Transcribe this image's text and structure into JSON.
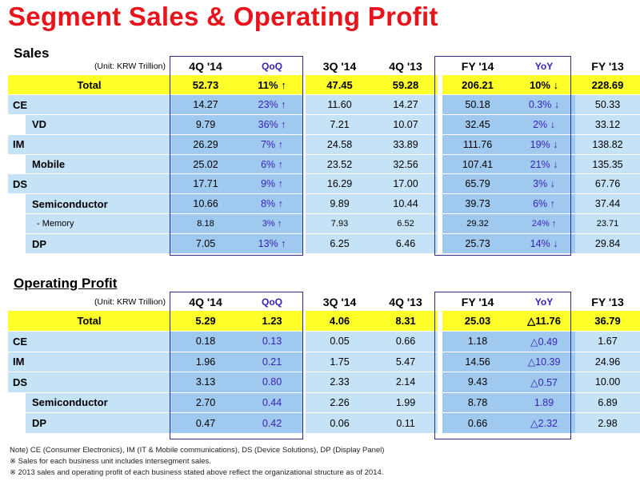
{
  "title": "Segment Sales & Operating Profit",
  "note_lines": [
    "Note) CE (Consumer Electronics), IM (IT & Mobile communications),  DS (Device Solutions), DP (Display Panel)",
    "※ Sales for each business unit includes intersegment sales.",
    "※ 2013 sales and operating profit of each business stated above reflect the organizational structure as of 2014."
  ],
  "sales": {
    "heading": "Sales",
    "unit": "(Unit: KRW Trillion)",
    "columns": [
      "4Q '14",
      "QoQ",
      "3Q '14",
      "4Q '13",
      "FY '14",
      "YoY",
      "FY '13"
    ],
    "rows": [
      {
        "label": "Total",
        "level": 0,
        "values": [
          "52.73",
          "11% ↑",
          "47.45",
          "59.28",
          "206.21",
          "10% ↓",
          "228.69"
        ]
      },
      {
        "label": "CE",
        "level": 0,
        "values": [
          "14.27",
          "23% ↑",
          "11.60",
          "14.27",
          "50.18",
          "0.3% ↓",
          "50.33"
        ]
      },
      {
        "label": "VD",
        "level": 1,
        "values": [
          "9.79",
          "36% ↑",
          "7.21",
          "10.07",
          "32.45",
          "2% ↓",
          "33.12"
        ]
      },
      {
        "label": "IM",
        "level": 0,
        "values": [
          "26.29",
          "7% ↑",
          "24.58",
          "33.89",
          "111.76",
          "19% ↓",
          "138.82"
        ]
      },
      {
        "label": "Mobile",
        "level": 1,
        "values": [
          "25.02",
          "6% ↑",
          "23.52",
          "32.56",
          "107.41",
          "21% ↓",
          "135.35"
        ]
      },
      {
        "label": "DS",
        "level": 0,
        "values": [
          "17.71",
          "9% ↑",
          "16.29",
          "17.00",
          "65.79",
          "3% ↓",
          "67.76"
        ]
      },
      {
        "label": "Semiconductor",
        "level": 1,
        "values": [
          "10.66",
          "8% ↑",
          "9.89",
          "10.44",
          "39.73",
          "6% ↑",
          "37.44"
        ]
      },
      {
        "label": "- Memory",
        "level": 2,
        "values": [
          "8.18",
          "3% ↑",
          "7.93",
          "6.52",
          "29.32",
          "24% ↑",
          "23.71"
        ]
      },
      {
        "label": "DP",
        "level": 1,
        "values": [
          "7.05",
          "13% ↑",
          "6.25",
          "6.46",
          "25.73",
          "14% ↓",
          "29.84"
        ]
      }
    ]
  },
  "operating_profit": {
    "heading": "Operating Profit",
    "unit": "(Unit: KRW Trillion)",
    "columns": [
      "4Q '14",
      "QoQ",
      "3Q '14",
      "4Q '13",
      "FY '14",
      "YoY",
      "FY '13"
    ],
    "rows": [
      {
        "label": "Total",
        "level": 0,
        "values": [
          "5.29",
          "1.23",
          "4.06",
          "8.31",
          "25.03",
          "△11.76",
          "36.79"
        ]
      },
      {
        "label": "CE",
        "level": 0,
        "values": [
          "0.18",
          "0.13",
          "0.05",
          "0.66",
          "1.18",
          "△0.49",
          "1.67"
        ]
      },
      {
        "label": "IM",
        "level": 0,
        "values": [
          "1.96",
          "0.21",
          "1.75",
          "5.47",
          "14.56",
          "△10.39",
          "24.96"
        ]
      },
      {
        "label": "DS",
        "level": 0,
        "values": [
          "3.13",
          "0.80",
          "2.33",
          "2.14",
          "9.43",
          "△0.57",
          "10.00"
        ]
      },
      {
        "label": "Semiconductor",
        "level": 1,
        "values": [
          "2.70",
          "0.44",
          "2.26",
          "1.99",
          "8.78",
          "1.89",
          "6.89"
        ]
      },
      {
        "label": "DP",
        "level": 1,
        "values": [
          "0.47",
          "0.42",
          "0.06",
          "0.11",
          "0.66",
          "△2.32",
          "2.98"
        ]
      }
    ]
  }
}
